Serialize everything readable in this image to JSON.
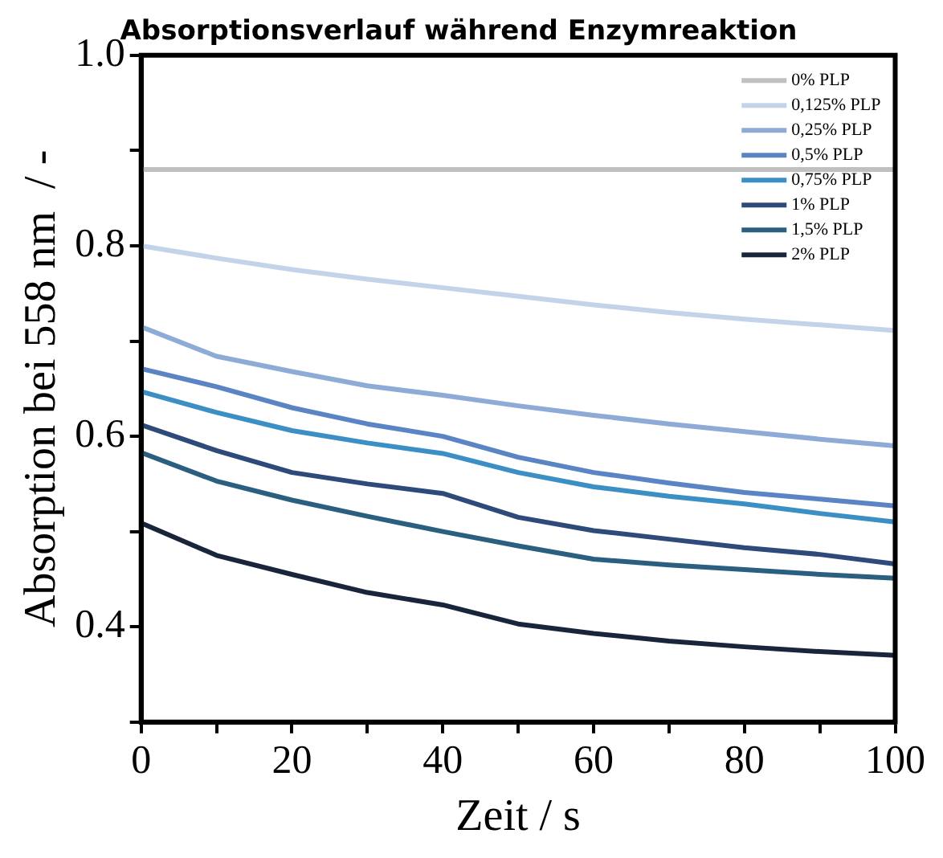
{
  "chart_data": {
    "type": "line",
    "title": "Absorptionsverlauf während Enzymreaktion",
    "xlabel": "Zeit / s",
    "ylabel": "Absorption bei 558 nm  / -",
    "x": [
      0,
      10,
      20,
      30,
      40,
      50,
      60,
      70,
      80,
      90,
      100
    ],
    "xlim": [
      0,
      100
    ],
    "xticks": [
      0,
      {
        "value": 10,
        "label": null
      },
      20,
      {
        "value": 30,
        "label": null
      },
      40,
      {
        "value": 50,
        "label": null
      },
      60,
      {
        "value": 70,
        "label": null
      },
      80,
      {
        "value": 90,
        "label": null
      },
      100
    ],
    "ylim": [
      0.3,
      1.0
    ],
    "yticks": [
      {
        "value": 0.3,
        "label": null
      },
      {
        "value": 0.4,
        "label": "0.4"
      },
      {
        "value": 0.5,
        "label": null
      },
      {
        "value": 0.6,
        "label": "0.6"
      },
      {
        "value": 0.7,
        "label": null
      },
      {
        "value": 0.8,
        "label": "0.8"
      },
      {
        "value": 0.9,
        "label": null
      },
      {
        "value": 1.0,
        "label": "1.0"
      }
    ],
    "grid": false,
    "legend": "top right",
    "marker": "none",
    "line_style": "solid",
    "series": [
      {
        "name": "0% PLP",
        "color": "#c0c0c0",
        "values": [
          0.88,
          0.88,
          0.88,
          0.88,
          0.88,
          0.88,
          0.88,
          0.88,
          0.88,
          0.88,
          0.88
        ]
      },
      {
        "name": "0,125% PLP",
        "color": "#c3d4ea",
        "values": [
          0.8,
          0.787,
          0.775,
          0.765,
          0.756,
          0.747,
          0.738,
          0.73,
          0.723,
          0.717,
          0.711
        ]
      },
      {
        "name": "0,25% PLP",
        "color": "#8eaad6",
        "values": [
          0.715,
          0.684,
          0.668,
          0.653,
          0.643,
          0.632,
          0.622,
          0.613,
          0.605,
          0.597,
          0.59
        ]
      },
      {
        "name": "0,5% PLP",
        "color": "#5b84c4",
        "values": [
          0.671,
          0.652,
          0.63,
          0.613,
          0.6,
          0.578,
          0.562,
          0.551,
          0.541,
          0.534,
          0.527
        ]
      },
      {
        "name": "0,75% PLP",
        "color": "#3b8fc4",
        "values": [
          0.647,
          0.625,
          0.606,
          0.593,
          0.582,
          0.562,
          0.547,
          0.537,
          0.529,
          0.519,
          0.51
        ]
      },
      {
        "name": "1% PLP",
        "color": "#2d4a7a",
        "values": [
          0.612,
          0.585,
          0.562,
          0.55,
          0.54,
          0.515,
          0.501,
          0.492,
          0.483,
          0.476,
          0.466
        ]
      },
      {
        "name": "1,5% PLP",
        "color": "#2a5f80",
        "values": [
          0.583,
          0.553,
          0.533,
          0.516,
          0.5,
          0.485,
          0.471,
          0.465,
          0.46,
          0.455,
          0.451
        ]
      },
      {
        "name": "2% PLP",
        "color": "#18253a",
        "values": [
          0.509,
          0.475,
          0.455,
          0.436,
          0.423,
          0.403,
          0.393,
          0.385,
          0.379,
          0.374,
          0.37
        ]
      }
    ]
  }
}
